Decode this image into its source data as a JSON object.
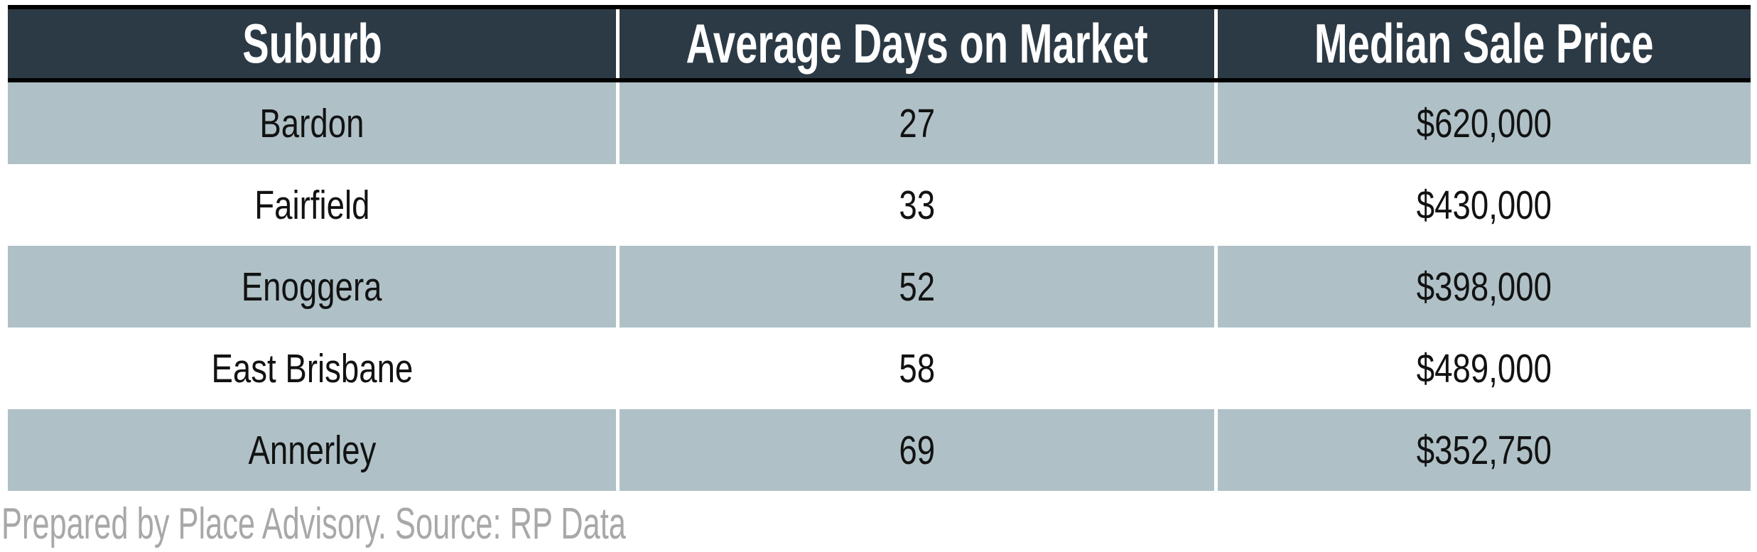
{
  "chart_data": {
    "type": "table",
    "columns": [
      "Suburb",
      "Average Days on Market",
      "Median Sale Price"
    ],
    "rows": [
      [
        "Bardon",
        27,
        "$620,000"
      ],
      [
        "Fairfield",
        33,
        "$430,000"
      ],
      [
        "Enoggera",
        52,
        "$398,000"
      ],
      [
        "East Brisbane",
        58,
        "$489,000"
      ],
      [
        "Annerley",
        69,
        "$352,750"
      ]
    ],
    "source_note": "Prepared by Place Advisory. Source: RP Data"
  },
  "table": {
    "headers": {
      "suburb": "Suburb",
      "days": "Average Days on Market",
      "price": "Median Sale Price"
    },
    "rows": [
      {
        "suburb": "Bardon",
        "days": "27",
        "price": "$620,000"
      },
      {
        "suburb": "Fairfield",
        "days": "33",
        "price": "$430,000"
      },
      {
        "suburb": "Enoggera",
        "days": "52",
        "price": "$398,000"
      },
      {
        "suburb": "East Brisbane",
        "days": "58",
        "price": "$489,000"
      },
      {
        "suburb": "Annerley",
        "days": "69",
        "price": "$352,750"
      }
    ]
  },
  "footer": {
    "attribution": "Prepared by Place Advisory. Source: RP Data"
  },
  "colors": {
    "header_bg": "#2C3A45",
    "header_text": "#FFFFFF",
    "row_alt_bg": "#AFC1C7",
    "row_bg": "#FFFFFF",
    "border": "#000000",
    "attribution_text": "#A8A8A8"
  }
}
